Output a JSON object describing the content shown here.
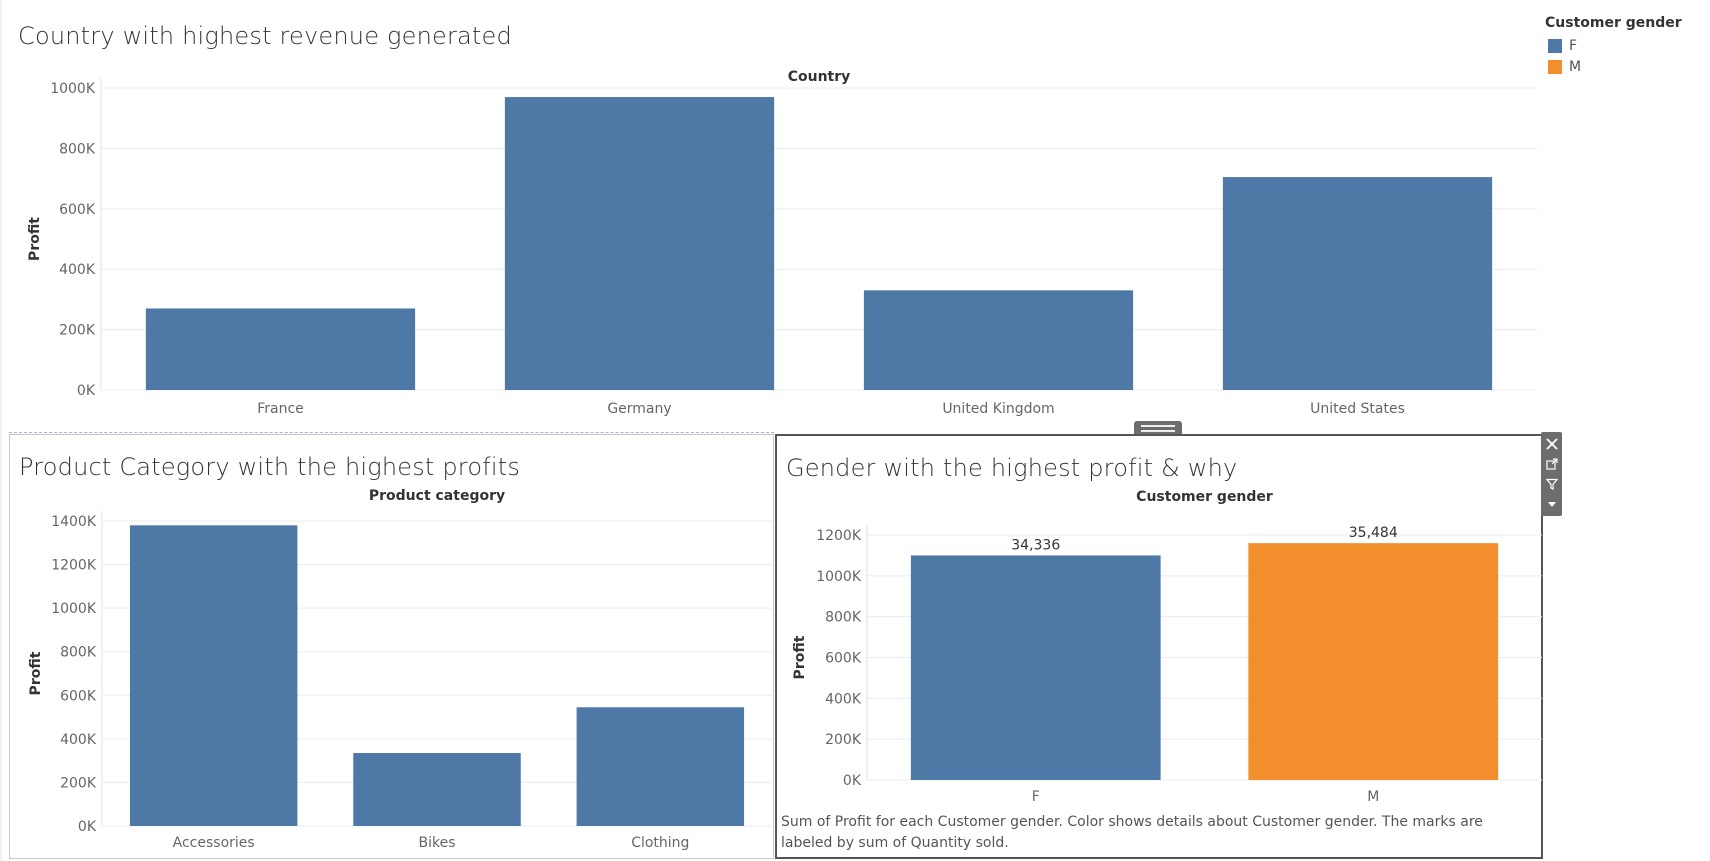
{
  "dashboard": {
    "colors": {
      "f_blue": "#4e79a7",
      "m_orange": "#f28e2b"
    }
  },
  "legend": {
    "title": "Customer gender",
    "items": [
      {
        "label": "F",
        "color": "#4e79a7"
      },
      {
        "label": "M",
        "color": "#f28e2b"
      }
    ]
  },
  "sheets": {
    "country": {
      "title": "Country with highest revenue generated"
    },
    "category": {
      "title": "Product Category with the highest profits"
    },
    "gender": {
      "title": "Gender with the highest profit & why",
      "caption": "Sum of Profit for each Customer gender.  Color shows details about Customer gender.  The marks are labeled by sum of Quantity sold."
    }
  },
  "toolbar": {
    "icons": [
      "close-icon",
      "popout-icon",
      "filter-icon",
      "menu-caret-icon"
    ]
  },
  "chart_data": [
    {
      "id": "country",
      "type": "bar",
      "header": "Country",
      "ylabel": "Profit",
      "categories": [
        "France",
        "Germany",
        "United Kingdom",
        "United States"
      ],
      "values": [
        270000,
        970000,
        330000,
        705000
      ],
      "ylim": [
        0,
        1000000
      ],
      "ticks": [
        {
          "value": 0,
          "label": "0K"
        },
        {
          "value": 200000,
          "label": "200K"
        },
        {
          "value": 400000,
          "label": "400K"
        },
        {
          "value": 600000,
          "label": "600K"
        },
        {
          "value": 800000,
          "label": "800K"
        },
        {
          "value": 1000000,
          "label": "1000K"
        }
      ],
      "colors": [
        "#4e79a7",
        "#4e79a7",
        "#4e79a7",
        "#4e79a7"
      ],
      "data_labels": [],
      "grid": true
    },
    {
      "id": "category",
      "type": "bar",
      "header": "Product category",
      "ylabel": "Profit",
      "categories": [
        "Accessories",
        "Bikes",
        "Clothing"
      ],
      "values": [
        1380000,
        335000,
        545000
      ],
      "ylim": [
        0,
        1400000
      ],
      "ticks": [
        {
          "value": 0,
          "label": "0K"
        },
        {
          "value": 200000,
          "label": "200K"
        },
        {
          "value": 400000,
          "label": "400K"
        },
        {
          "value": 600000,
          "label": "600K"
        },
        {
          "value": 800000,
          "label": "800K"
        },
        {
          "value": 1000000,
          "label": "1000K"
        },
        {
          "value": 1200000,
          "label": "1200K"
        },
        {
          "value": 1400000,
          "label": "1400K"
        }
      ],
      "colors": [
        "#4e79a7",
        "#4e79a7",
        "#4e79a7"
      ],
      "data_labels": [],
      "grid": true
    },
    {
      "id": "gender",
      "type": "bar",
      "header": "Customer gender",
      "ylabel": "Profit",
      "categories": [
        "F",
        "M"
      ],
      "values": [
        1100000,
        1160000
      ],
      "ylim": [
        0,
        1200000
      ],
      "ticks": [
        {
          "value": 0,
          "label": "0K"
        },
        {
          "value": 200000,
          "label": "200K"
        },
        {
          "value": 400000,
          "label": "400K"
        },
        {
          "value": 600000,
          "label": "600K"
        },
        {
          "value": 800000,
          "label": "800K"
        },
        {
          "value": 1000000,
          "label": "1000K"
        },
        {
          "value": 1200000,
          "label": "1200K"
        }
      ],
      "colors": [
        "#4e79a7",
        "#f28e2b"
      ],
      "data_labels": [
        "34,336",
        "35,484"
      ],
      "grid": true
    }
  ]
}
